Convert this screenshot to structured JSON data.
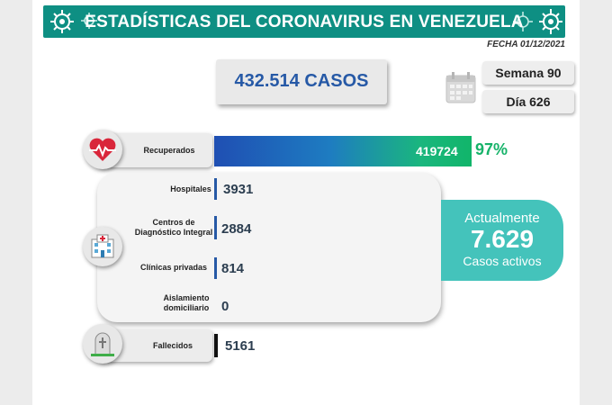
{
  "header": {
    "title": "ESTADÍSTICAS DEL CORONAVIRUS EN VENEZUELA",
    "date": "FECHA 01/12/2021"
  },
  "summary": {
    "total_cases": "432.514 CASOS",
    "week": "Semana 90",
    "day": "Día 626"
  },
  "recovered": {
    "label": "Recuperados",
    "value": "419724",
    "percent": "97%"
  },
  "breakdown": [
    {
      "label": "Hospitales",
      "value": "3931"
    },
    {
      "label": "Centros de Diagnóstico Integral",
      "value": "2884"
    },
    {
      "label": "Clínicas privadas",
      "value": "814"
    },
    {
      "label": "Aislamiento domiciliario",
      "value": "0"
    }
  ],
  "active": {
    "title": "Actualmente",
    "value": "7.629",
    "subtitle": "Casos activos"
  },
  "deceased": {
    "label": "Fallecidos",
    "value": "5161"
  },
  "colors": {
    "header_teal": "#0e8f83",
    "total_blue": "#2659a6",
    "recovered_green": "#17b36a",
    "active_teal": "#44c3bb",
    "heart_red": "#d9263a"
  },
  "icons": [
    "virus-icon",
    "calendar-icon",
    "heart-pulse-icon",
    "hospital-icon",
    "tombstone-icon"
  ]
}
